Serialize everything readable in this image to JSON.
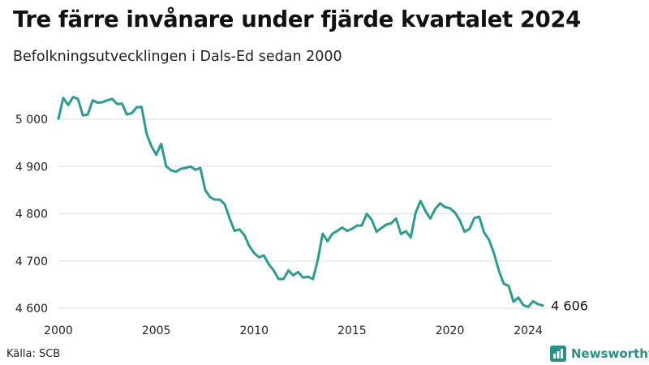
{
  "header": {
    "title": "Tre färre invånare under fjärde kvartalet 2024",
    "subtitle": "Befolkningsutvecklingen i Dals-Ed sedan 2000"
  },
  "footer": {
    "source": "Källa: SCB",
    "brand": "Newsworthy"
  },
  "colors": {
    "line": "#2a9d8f",
    "grid": "#dddddd",
    "brand": "#2a8f84"
  },
  "chart_data": {
    "type": "line",
    "title": "Tre färre invånare under fjärde kvartalet 2024",
    "subtitle": "Befolkningsutvecklingen i Dals-Ed sedan 2000",
    "xlabel": "",
    "ylabel": "",
    "xlim": [
      2000.0,
      2025.2
    ],
    "ylim": [
      4590,
      5060
    ],
    "grid": "horizontal",
    "x_ticks": [
      2000,
      2005,
      2010,
      2015,
      2020,
      2024
    ],
    "x_tick_labels": [
      "2000",
      "2005",
      "2010",
      "2015",
      "2020",
      "2024"
    ],
    "y_ticks": [
      4600,
      4700,
      4800,
      4900,
      5000
    ],
    "y_tick_labels": [
      "4 600",
      "4 700",
      "4 800",
      "4 900",
      "5 000"
    ],
    "end_label": "4 606",
    "series": [
      {
        "x": [
          2000.0,
          2000.25,
          2000.5,
          2000.75,
          2001.0,
          2001.25,
          2001.5,
          2001.75,
          2002.0,
          2002.25,
          2002.5,
          2002.75,
          2003.0,
          2003.25,
          2003.5,
          2003.75,
          2004.0,
          2004.25,
          2004.5,
          2004.75,
          2005.0,
          2005.25,
          2005.5,
          2005.75,
          2006.0,
          2006.25,
          2006.5,
          2006.75,
          2007.0,
          2007.25,
          2007.5,
          2007.75,
          2008.0,
          2008.25,
          2008.5,
          2008.75,
          2009.0,
          2009.25,
          2009.5,
          2009.75,
          2010.0,
          2010.25,
          2010.5,
          2010.75,
          2011.0,
          2011.25,
          2011.5,
          2011.75,
          2012.0,
          2012.25,
          2012.5,
          2012.75,
          2013.0,
          2013.25,
          2013.5,
          2013.75,
          2014.0,
          2014.25,
          2014.5,
          2014.75,
          2015.0,
          2015.25,
          2015.5,
          2015.75,
          2016.0,
          2016.25,
          2016.5,
          2016.75,
          2017.0,
          2017.25,
          2017.5,
          2017.75,
          2018.0,
          2018.25,
          2018.5,
          2018.75,
          2019.0,
          2019.25,
          2019.5,
          2019.75,
          2020.0,
          2020.25,
          2020.5,
          2020.75,
          2021.0,
          2021.25,
          2021.5,
          2021.75,
          2022.0,
          2022.25,
          2022.5,
          2022.75,
          2023.0,
          2023.25,
          2023.5,
          2023.75,
          2024.0,
          2024.25,
          2024.5,
          2024.75
        ],
        "values": [
          5001,
          5045,
          5030,
          5047,
          5043,
          5008,
          5010,
          5040,
          5035,
          5036,
          5040,
          5043,
          5032,
          5033,
          5010,
          5013,
          5025,
          5026,
          4970,
          4943,
          4925,
          4948,
          4901,
          4892,
          4889,
          4895,
          4897,
          4900,
          4893,
          4897,
          4850,
          4835,
          4830,
          4830,
          4820,
          4790,
          4764,
          4767,
          4755,
          4732,
          4717,
          4708,
          4712,
          4693,
          4680,
          4662,
          4662,
          4680,
          4670,
          4677,
          4665,
          4667,
          4662,
          4702,
          4758,
          4742,
          4758,
          4764,
          4771,
          4764,
          4768,
          4775,
          4775,
          4800,
          4788,
          4762,
          4770,
          4777,
          4780,
          4790,
          4757,
          4763,
          4750,
          4802,
          4827,
          4806,
          4790,
          4810,
          4822,
          4814,
          4812,
          4803,
          4787,
          4762,
          4768,
          4791,
          4794,
          4760,
          4745,
          4717,
          4680,
          4652,
          4648,
          4614,
          4623,
          4607,
          4603,
          4615,
          4609,
          4606
        ]
      }
    ]
  }
}
